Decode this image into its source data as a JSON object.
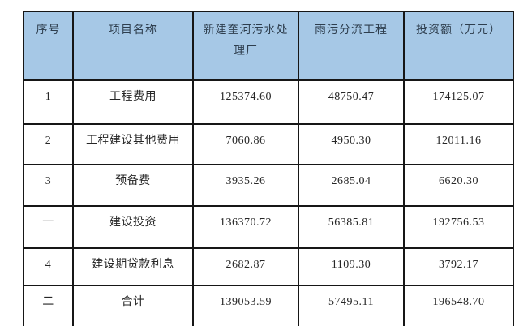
{
  "table": {
    "title_semantic": "investment-estimate-summary-table",
    "colors": {
      "header_bg": "#a6c8e6",
      "header_text": "#2e3e4e",
      "body_text": "#262626",
      "border": "#161616",
      "page_bg": "#ffffff"
    },
    "headers": {
      "seq": "序号",
      "name": "项目名称",
      "plant": "新建奎河污水处理厂",
      "diversion": "雨污分流工程",
      "total": "投资额（万元）"
    },
    "rows": [
      {
        "seq": "1",
        "name": "工程费用",
        "plant": "125374.60",
        "diversion": "48750.47",
        "total": "174125.07"
      },
      {
        "seq": "2",
        "name": "工程建设其他费用",
        "plant": "7060.86",
        "diversion": "4950.30",
        "total": "12011.16"
      },
      {
        "seq": "3",
        "name": "预备费",
        "plant": "3935.26",
        "diversion": "2685.04",
        "total": "6620.30"
      },
      {
        "seq": "一",
        "name": "建设投资",
        "plant": "136370.72",
        "diversion": "56385.81",
        "total": "192756.53"
      },
      {
        "seq": "4",
        "name": "建设期贷款利息",
        "plant": "2682.87",
        "diversion": "1109.30",
        "total": "3792.17"
      },
      {
        "seq": "二",
        "name": "合计",
        "plant": "139053.59",
        "diversion": "57495.11",
        "total": "196548.70"
      }
    ]
  }
}
